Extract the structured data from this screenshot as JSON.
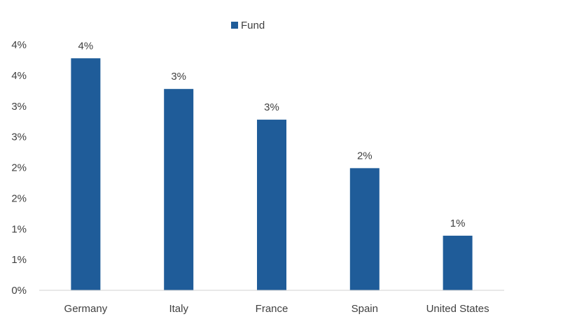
{
  "chart_data": {
    "type": "bar",
    "title": "",
    "xlabel": "",
    "ylabel": "",
    "categories": [
      "Germany",
      "Italy",
      "France",
      "Spain",
      "United States"
    ],
    "series": [
      {
        "name": "Fund",
        "color": "#1F5C99",
        "values": [
          3.78,
          3.28,
          2.78,
          1.99,
          0.89
        ],
        "data_labels": [
          "4%",
          "3%",
          "3%",
          "2%",
          "1%"
        ]
      }
    ],
    "ylim": [
      0,
      4
    ],
    "yticks": [
      0,
      0.5,
      1,
      1.5,
      2,
      2.5,
      3,
      3.5,
      4
    ],
    "ytick_labels": [
      "0%",
      "1%",
      "1%",
      "2%",
      "2%",
      "3%",
      "3%",
      "4%",
      "4%"
    ],
    "grid": false,
    "legend_position": "top-center"
  }
}
